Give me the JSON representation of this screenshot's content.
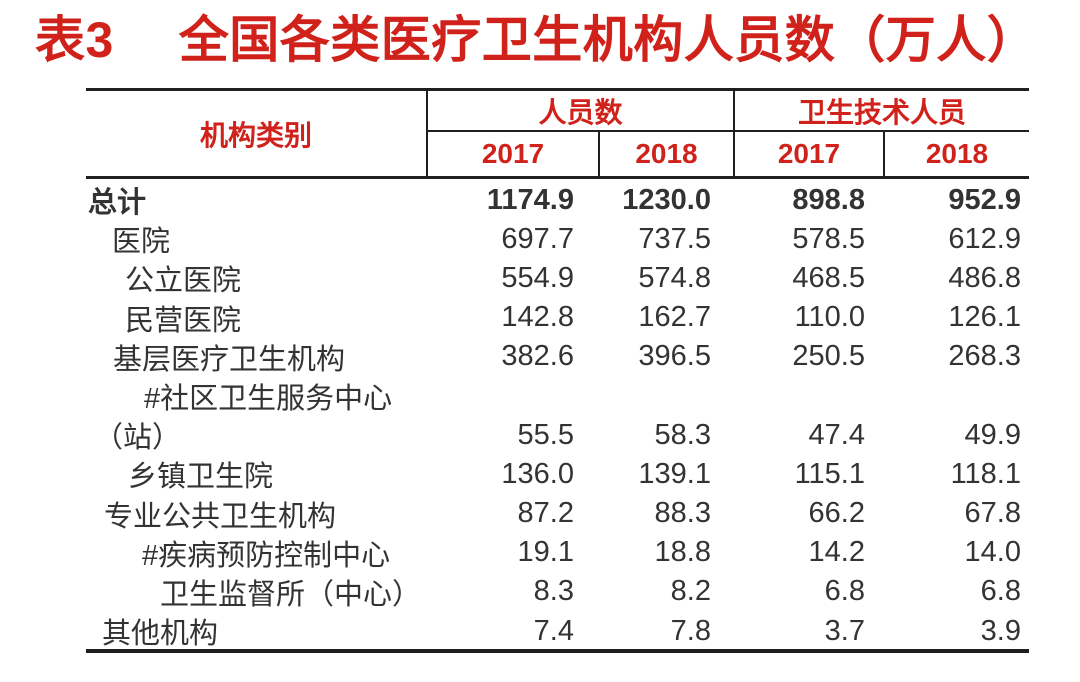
{
  "title": "表3　 全国各类医疗卫生机构人员数（万人）",
  "colors": {
    "accent_red": "#d0221b",
    "body_text": "#333333",
    "rule_line": "#1f1f1f",
    "background": "#ffffff"
  },
  "table": {
    "category_header": "机构类别",
    "group_headers": [
      {
        "label": "人员数"
      },
      {
        "label": "卫生技术人员"
      }
    ],
    "year_headers": [
      "2017",
      "2018",
      "2017",
      "2018"
    ],
    "rows": [
      {
        "label": "总计",
        "bold": true,
        "indent": 2,
        "values": [
          "1174.9",
          "1230.0",
          "898.8",
          "952.9"
        ]
      },
      {
        "label": "医院",
        "bold": false,
        "indent": 26,
        "values": [
          "697.7",
          "737.5",
          "578.5",
          "612.9"
        ]
      },
      {
        "label": "公立医院",
        "bold": false,
        "indent": 39,
        "values": [
          "554.9",
          "574.8",
          "468.5",
          "486.8"
        ]
      },
      {
        "label": "民营医院",
        "bold": false,
        "indent": 39,
        "values": [
          "142.8",
          "162.7",
          "110.0",
          "126.1"
        ]
      },
      {
        "label": "基层医疗卫生机构",
        "bold": false,
        "indent": 27,
        "values": [
          "382.6",
          "396.5",
          "250.5",
          "268.3"
        ]
      },
      {
        "label": "#社区卫生服务中心",
        "bold": false,
        "indent": 58,
        "values": [
          "",
          "",
          "",
          ""
        ]
      },
      {
        "label": "（站）",
        "bold": false,
        "indent": 8,
        "values": [
          "55.5",
          "58.3",
          "47.4",
          "49.9"
        ]
      },
      {
        "label": "乡镇卫生院",
        "bold": false,
        "indent": 42,
        "values": [
          "136.0",
          "139.1",
          "115.1",
          "118.1"
        ]
      },
      {
        "label": "专业公共卫生机构",
        "bold": false,
        "indent": 18,
        "values": [
          "87.2",
          "88.3",
          "66.2",
          "67.8"
        ]
      },
      {
        "label": "#疾病预防控制中心",
        "bold": false,
        "indent": 56,
        "values": [
          "19.1",
          "18.8",
          "14.2",
          "14.0"
        ]
      },
      {
        "label": "卫生监督所（中心）",
        "bold": false,
        "indent": 74,
        "values": [
          "8.3",
          "8.2",
          "6.8",
          "6.8"
        ]
      },
      {
        "label": "其他机构",
        "bold": false,
        "indent": 16,
        "values": [
          "7.4",
          "7.8",
          "3.7",
          "3.9"
        ]
      }
    ]
  },
  "chart_data": {
    "type": "table",
    "title": "表3　全国各类医疗卫生机构人员数（万人）",
    "column_groups": [
      "人员数",
      "卫生技术人员"
    ],
    "columns": [
      "机构类别",
      "人员数 2017",
      "人员数 2018",
      "卫生技术人员 2017",
      "卫生技术人员 2018"
    ],
    "rows": [
      [
        "总计",
        1174.9,
        1230.0,
        898.8,
        952.9
      ],
      [
        "医院",
        697.7,
        737.5,
        578.5,
        612.9
      ],
      [
        "公立医院",
        554.9,
        574.8,
        468.5,
        486.8
      ],
      [
        "民营医院",
        142.8,
        162.7,
        110.0,
        126.1
      ],
      [
        "基层医疗卫生机构",
        382.6,
        396.5,
        250.5,
        268.3
      ],
      [
        "#社区卫生服务中心（站）",
        55.5,
        58.3,
        47.4,
        49.9
      ],
      [
        "乡镇卫生院",
        136.0,
        139.1,
        115.1,
        118.1
      ],
      [
        "专业公共卫生机构",
        87.2,
        88.3,
        66.2,
        67.8
      ],
      [
        "#疾病预防控制中心",
        19.1,
        18.8,
        14.2,
        14.0
      ],
      [
        "卫生监督所（中心）",
        8.3,
        8.2,
        6.8,
        6.8
      ],
      [
        "其他机构",
        7.4,
        7.8,
        3.7,
        3.9
      ]
    ]
  }
}
